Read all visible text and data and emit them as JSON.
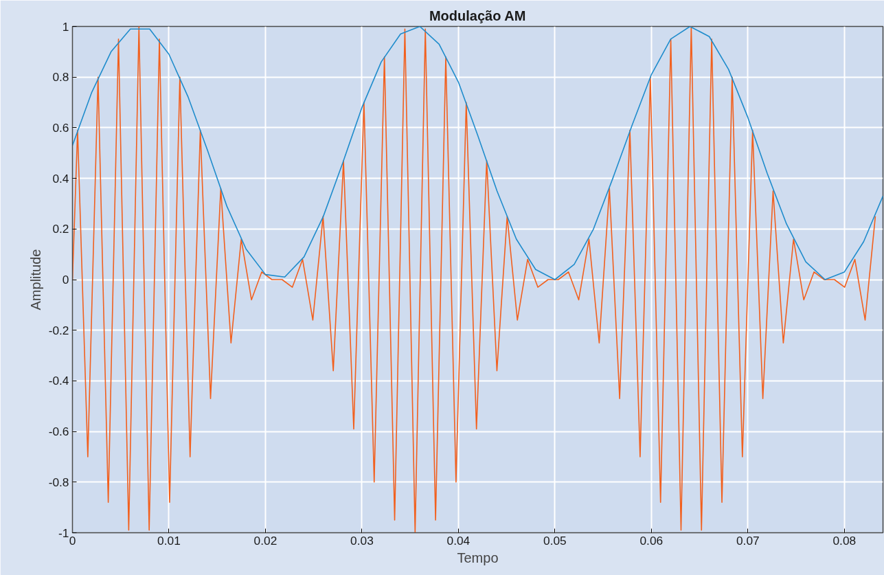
{
  "chart_data": {
    "type": "line",
    "title": "Modulação AM",
    "xlabel": "Tempo",
    "ylabel": "Amplitude",
    "xlim": [
      0,
      0.084
    ],
    "ylim": [
      -1,
      1
    ],
    "xticks": [
      0,
      0.01,
      0.02,
      0.03,
      0.04,
      0.05,
      0.06,
      0.07,
      0.08
    ],
    "yticks": [
      -1,
      -0.8,
      -0.6,
      -0.4,
      -0.2,
      0,
      0.2,
      0.4,
      0.6,
      0.8,
      1
    ],
    "grid": true,
    "line_style": "solid",
    "series": [
      {
        "color": "#f2601e",
        "x": [
          0,
          0.00053,
          0.00159,
          0.00265,
          0.00371,
          0.00477,
          0.00583,
          0.00689,
          0.00795,
          0.00901,
          0.01007,
          0.01113,
          0.01219,
          0.01325,
          0.01431,
          0.01537,
          0.01643,
          0.01749,
          0.01855,
          0.01961,
          0.02067,
          0.02173,
          0.02279,
          0.02385,
          0.02491,
          0.02597,
          0.02703,
          0.02809,
          0.02915,
          0.03021,
          0.03127,
          0.03233,
          0.03339,
          0.03445,
          0.03551,
          0.03657,
          0.03763,
          0.03869,
          0.03975,
          0.04081,
          0.04187,
          0.04293,
          0.04399,
          0.04505,
          0.04611,
          0.04717,
          0.04823,
          0.04929,
          0.05035,
          0.05141,
          0.05247,
          0.05353,
          0.05459,
          0.05565,
          0.05671,
          0.05777,
          0.05883,
          0.05989,
          0.06095,
          0.06201,
          0.06307,
          0.06413,
          0.06519,
          0.06625,
          0.06731,
          0.06837,
          0.06943,
          0.07049,
          0.07155,
          0.07261,
          0.07367,
          0.07473,
          0.07579,
          0.07685,
          0.07791,
          0.07897,
          0.08003,
          0.08109,
          0.08215,
          0.08321
        ],
        "values": [
          0,
          0.59,
          -0.7,
          0.8,
          -0.88,
          0.95,
          -0.99,
          1.0,
          -0.99,
          0.95,
          -0.88,
          0.8,
          -0.7,
          0.59,
          -0.47,
          0.36,
          -0.25,
          0.16,
          -0.08,
          0.03,
          0.0,
          0.0,
          -0.03,
          0.08,
          -0.16,
          0.25,
          -0.36,
          0.47,
          -0.59,
          0.7,
          -0.8,
          0.88,
          -0.95,
          0.99,
          -1.0,
          0.99,
          -0.95,
          0.88,
          -0.8,
          0.7,
          -0.59,
          0.47,
          -0.36,
          0.25,
          -0.16,
          0.08,
          -0.03,
          0.0,
          0.0,
          0.03,
          -0.08,
          0.16,
          -0.25,
          0.36,
          -0.47,
          0.59,
          -0.7,
          0.8,
          -0.88,
          0.95,
          -0.99,
          1.0,
          -0.99,
          0.95,
          -0.88,
          0.8,
          -0.7,
          0.59,
          -0.47,
          0.35,
          -0.25,
          0.16,
          -0.08,
          0.03,
          0.0,
          0.0,
          -0.03,
          0.08,
          -0.16,
          0.25
        ]
      },
      {
        "color": "#1f8ccc",
        "x": [
          0,
          0.002,
          0.004,
          0.006,
          0.008,
          0.01,
          0.012,
          0.014,
          0.016,
          0.018,
          0.02,
          0.022,
          0.024,
          0.026,
          0.028,
          0.03,
          0.032,
          0.034,
          0.036,
          0.038,
          0.04,
          0.042,
          0.044,
          0.046,
          0.048,
          0.05,
          0.052,
          0.054,
          0.056,
          0.058,
          0.06,
          0.062,
          0.064,
          0.066,
          0.068,
          0.07,
          0.072,
          0.074,
          0.076,
          0.078,
          0.08,
          0.082,
          0.084
        ],
        "values": [
          0.53,
          0.74,
          0.9,
          0.99,
          0.99,
          0.89,
          0.72,
          0.51,
          0.29,
          0.12,
          0.02,
          0.01,
          0.09,
          0.25,
          0.46,
          0.68,
          0.86,
          0.97,
          1.0,
          0.93,
          0.78,
          0.57,
          0.35,
          0.16,
          0.04,
          0.0,
          0.06,
          0.2,
          0.4,
          0.61,
          0.81,
          0.95,
          1.0,
          0.96,
          0.83,
          0.64,
          0.42,
          0.22,
          0.07,
          0.0,
          0.03,
          0.15,
          0.33
        ]
      }
    ]
  }
}
